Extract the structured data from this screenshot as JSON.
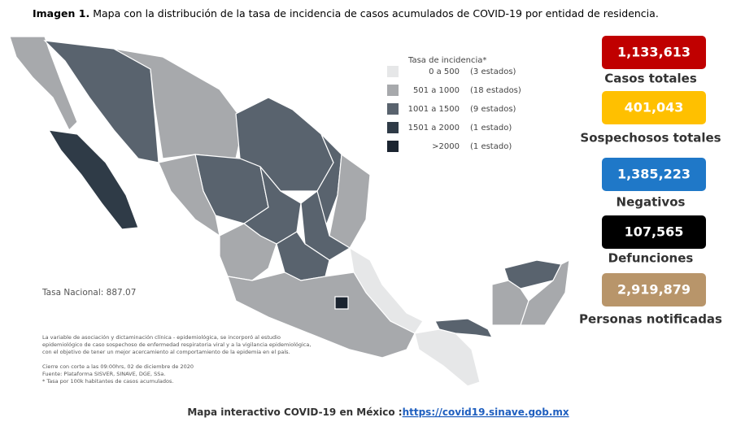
{
  "header": {
    "label": "Imagen 1.",
    "title": "Mapa con la distribución de la tasa de incidencia de casos acumulados de COVID-19 por entidad de residencia."
  },
  "legend": {
    "title": "Tasa de incidencia*",
    "items": [
      {
        "range": "0  a  500",
        "count": "(3 estados)",
        "color": "#e6e7e8"
      },
      {
        "range": "501  a  1000",
        "count": "(18 estados)",
        "color": "#a7a9ac"
      },
      {
        "range": "1001  a  1500",
        "count": "(9 estados)",
        "color": "#59636e"
      },
      {
        "range": "1501  a  2000",
        "count": "(1 estado)",
        "color": "#2f3b47"
      },
      {
        "range": ">2000",
        "count": "(1 estado)",
        "color": "#1b2430"
      }
    ]
  },
  "national_rate": "Tasa Nacional: 887.07",
  "notes": [
    "La variable de asociación y dictaminación clínica - epidemiológica, se incorporó al estudio",
    "epidemiológico de caso sospechoso de enfermedad respiratoria viral y a la vigilancia epidemiológica,",
    "con el objetivo de tener un mejor acercamiento al comportamiento de la epidemia en el país.",
    "Cierre con corte a las 09:00hrs, 02 de diciembre de 2020",
    "Fuente: Plataforma SISVER, SINAVE, DGE, SSa.",
    "* Tasa por 100k habitantes de casos acumulados."
  ],
  "stats": [
    {
      "value": "1,133,613",
      "label": "Casos totales",
      "color": "#c00000"
    },
    {
      "value": "401,043",
      "label": "Sospechosos totales",
      "color": "#ffc000"
    },
    {
      "value": "1,385,223",
      "label": "Negativos",
      "color": "#1f78c8"
    },
    {
      "value": "107,565",
      "label": "Defunciones",
      "color": "#000000"
    },
    {
      "value": "2,919,879",
      "label": "Personas notificadas",
      "color": "#b8956a"
    }
  ],
  "footer": {
    "text": "Mapa interactivo COVID-19 en México :",
    "link": "https://covid19.sinave.gob.mx"
  }
}
